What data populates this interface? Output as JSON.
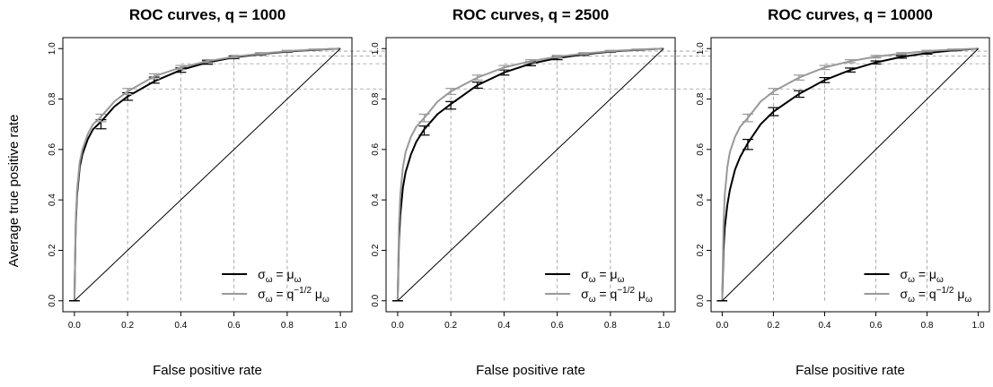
{
  "figure": {
    "ylabel": "Average true positive rate"
  },
  "chart_data": [
    {
      "type": "line",
      "title": "ROC curves, q = 1000",
      "xlabel": "False positive rate",
      "ylabel": "Average true positive rate",
      "xlim": [
        0,
        1
      ],
      "ylim": [
        0,
        1
      ],
      "xticks": [
        "0.0",
        "0.2",
        "0.4",
        "0.6",
        "0.8",
        "1.0"
      ],
      "yticks": [
        "0.0",
        "0.2",
        "0.4",
        "0.6",
        "0.8",
        "1.0"
      ],
      "legend_position": "bottom-right",
      "legend": [
        {
          "text_main": "σ",
          "text_sub": "ω",
          "text_eq": " = μ",
          "text_sub2": "ω",
          "color": "#000000"
        },
        {
          "text_main": "σ",
          "text_sub": "ω",
          "text_eq": " = q",
          "text_sup": "−1/2",
          "text_tail": " μ",
          "text_sub2": "ω",
          "color": "#999999"
        }
      ],
      "series": [
        {
          "color": "#000000",
          "x": [
            0,
            0.005,
            0.01,
            0.02,
            0.03,
            0.05,
            0.07,
            0.1,
            0.15,
            0.2,
            0.3,
            0.4,
            0.5,
            0.6,
            0.7,
            0.8,
            0.9,
            1.0
          ],
          "y": [
            0,
            0.3,
            0.42,
            0.53,
            0.58,
            0.64,
            0.68,
            0.71,
            0.77,
            0.81,
            0.87,
            0.915,
            0.945,
            0.965,
            0.978,
            0.988,
            0.995,
            1.0
          ],
          "error_bars": [
            {
              "x": 0.1,
              "y": 0.7,
              "err": 0.018
            },
            {
              "x": 0.2,
              "y": 0.81,
              "err": 0.015
            },
            {
              "x": 0.3,
              "y": 0.875,
              "err": 0.012
            },
            {
              "x": 0.4,
              "y": 0.915,
              "err": 0.009
            },
            {
              "x": 0.5,
              "y": 0.945,
              "err": 0.007
            },
            {
              "x": 0.6,
              "y": 0.965,
              "err": 0.005
            },
            {
              "x": 0.7,
              "y": 0.978,
              "err": 0.004
            },
            {
              "x": 0.8,
              "y": 0.988,
              "err": 0.003
            },
            {
              "x": 0.9,
              "y": 0.995,
              "err": 0.002
            }
          ]
        },
        {
          "color": "#999999",
          "x": [
            0,
            0.005,
            0.01,
            0.02,
            0.03,
            0.05,
            0.07,
            0.1,
            0.15,
            0.2,
            0.3,
            0.4,
            0.5,
            0.6,
            0.7,
            0.8,
            0.9,
            1.0
          ],
          "y": [
            0,
            0.32,
            0.44,
            0.55,
            0.6,
            0.66,
            0.7,
            0.73,
            0.79,
            0.83,
            0.89,
            0.925,
            0.95,
            0.968,
            0.98,
            0.99,
            0.996,
            1.0
          ],
          "error_bars": [
            {
              "x": 0.1,
              "y": 0.725,
              "err": 0.015
            },
            {
              "x": 0.2,
              "y": 0.83,
              "err": 0.012
            },
            {
              "x": 0.3,
              "y": 0.89,
              "err": 0.01
            },
            {
              "x": 0.4,
              "y": 0.925,
              "err": 0.008
            },
            {
              "x": 0.5,
              "y": 0.95,
              "err": 0.006
            },
            {
              "x": 0.6,
              "y": 0.968,
              "err": 0.005
            },
            {
              "x": 0.7,
              "y": 0.98,
              "err": 0.004
            },
            {
              "x": 0.8,
              "y": 0.99,
              "err": 0.003
            },
            {
              "x": 0.9,
              "y": 0.996,
              "err": 0.002
            }
          ]
        },
        {
          "color": "#000000",
          "x": [
            0,
            1
          ],
          "y": [
            0,
            1
          ]
        }
      ],
      "dashed_guides": [
        {
          "x": 0.2,
          "y": 0.84
        },
        {
          "x": 0.4,
          "y": 0.94
        },
        {
          "x": 0.6,
          "y": 0.97
        },
        {
          "x": 0.8,
          "y": 0.99
        }
      ]
    },
    {
      "type": "line",
      "title": "ROC curves, q = 2500",
      "xlabel": "False positive rate",
      "xlim": [
        0,
        1
      ],
      "ylim": [
        0,
        1
      ],
      "xticks": [
        "0.0",
        "0.2",
        "0.4",
        "0.6",
        "0.8",
        "1.0"
      ],
      "yticks": [
        "0.0",
        "0.2",
        "0.4",
        "0.6",
        "0.8",
        "1.0"
      ],
      "legend_position": "bottom-right",
      "legend": [
        {
          "text_main": "σ",
          "text_sub": "ω",
          "text_eq": " = μ",
          "text_sub2": "ω",
          "color": "#000000"
        },
        {
          "text_main": "σ",
          "text_sub": "ω",
          "text_eq": " = q",
          "text_sup": "−1/2",
          "text_tail": " μ",
          "text_sub2": "ω",
          "color": "#999999"
        }
      ],
      "series": [
        {
          "color": "#000000",
          "x": [
            0,
            0.005,
            0.01,
            0.02,
            0.03,
            0.05,
            0.07,
            0.1,
            0.15,
            0.2,
            0.3,
            0.4,
            0.5,
            0.6,
            0.7,
            0.8,
            0.9,
            1.0
          ],
          "y": [
            0,
            0.24,
            0.34,
            0.45,
            0.51,
            0.58,
            0.63,
            0.68,
            0.74,
            0.78,
            0.855,
            0.905,
            0.94,
            0.962,
            0.977,
            0.988,
            0.995,
            1.0
          ],
          "error_bars": [
            {
              "x": 0.1,
              "y": 0.675,
              "err": 0.018
            },
            {
              "x": 0.2,
              "y": 0.775,
              "err": 0.015
            },
            {
              "x": 0.3,
              "y": 0.855,
              "err": 0.012
            },
            {
              "x": 0.4,
              "y": 0.905,
              "err": 0.01
            },
            {
              "x": 0.5,
              "y": 0.94,
              "err": 0.008
            },
            {
              "x": 0.6,
              "y": 0.962,
              "err": 0.006
            },
            {
              "x": 0.7,
              "y": 0.977,
              "err": 0.004
            },
            {
              "x": 0.8,
              "y": 0.988,
              "err": 0.003
            },
            {
              "x": 0.9,
              "y": 0.995,
              "err": 0.002
            }
          ]
        },
        {
          "color": "#999999",
          "x": [
            0,
            0.005,
            0.01,
            0.02,
            0.03,
            0.05,
            0.07,
            0.1,
            0.15,
            0.2,
            0.3,
            0.4,
            0.5,
            0.6,
            0.7,
            0.8,
            0.9,
            1.0
          ],
          "y": [
            0,
            0.3,
            0.42,
            0.53,
            0.59,
            0.65,
            0.69,
            0.725,
            0.79,
            0.83,
            0.885,
            0.925,
            0.95,
            0.968,
            0.98,
            0.99,
            0.996,
            1.0
          ],
          "error_bars": [
            {
              "x": 0.1,
              "y": 0.725,
              "err": 0.015
            },
            {
              "x": 0.2,
              "y": 0.83,
              "err": 0.012
            },
            {
              "x": 0.3,
              "y": 0.885,
              "err": 0.01
            },
            {
              "x": 0.4,
              "y": 0.925,
              "err": 0.008
            },
            {
              "x": 0.5,
              "y": 0.95,
              "err": 0.006
            },
            {
              "x": 0.6,
              "y": 0.968,
              "err": 0.005
            },
            {
              "x": 0.7,
              "y": 0.98,
              "err": 0.004
            },
            {
              "x": 0.8,
              "y": 0.99,
              "err": 0.003
            },
            {
              "x": 0.9,
              "y": 0.996,
              "err": 0.002
            }
          ]
        },
        {
          "color": "#000000",
          "x": [
            0,
            1
          ],
          "y": [
            0,
            1
          ]
        }
      ],
      "dashed_guides": [
        {
          "x": 0.2,
          "y": 0.84
        },
        {
          "x": 0.4,
          "y": 0.94
        },
        {
          "x": 0.6,
          "y": 0.97
        },
        {
          "x": 0.8,
          "y": 0.99
        }
      ]
    },
    {
      "type": "line",
      "title": "ROC curves, q = 10000",
      "xlabel": "False positive rate",
      "xlim": [
        0,
        1
      ],
      "ylim": [
        0,
        1
      ],
      "xticks": [
        "0.0",
        "0.2",
        "0.4",
        "0.6",
        "0.8",
        "1.0"
      ],
      "yticks": [
        "0.0",
        "0.2",
        "0.4",
        "0.6",
        "0.8",
        "1.0"
      ],
      "legend_position": "bottom-right",
      "legend": [
        {
          "text_main": "σ",
          "text_sub": "ω",
          "text_eq": " = μ",
          "text_sub2": "ω",
          "color": "#000000"
        },
        {
          "text_main": "σ",
          "text_sub": "ω",
          "text_eq": " = q",
          "text_sup": "−1/2",
          "text_tail": " μ",
          "text_sub2": "ω",
          "color": "#999999"
        }
      ],
      "series": [
        {
          "color": "#000000",
          "x": [
            0,
            0.005,
            0.01,
            0.02,
            0.03,
            0.05,
            0.07,
            0.1,
            0.15,
            0.2,
            0.3,
            0.4,
            0.5,
            0.6,
            0.7,
            0.8,
            0.9,
            1.0
          ],
          "y": [
            0,
            0.2,
            0.29,
            0.38,
            0.44,
            0.52,
            0.57,
            0.625,
            0.7,
            0.75,
            0.82,
            0.875,
            0.915,
            0.945,
            0.967,
            0.982,
            0.993,
            1.0
          ],
          "error_bars": [
            {
              "x": 0.1,
              "y": 0.62,
              "err": 0.02
            },
            {
              "x": 0.2,
              "y": 0.75,
              "err": 0.016
            },
            {
              "x": 0.3,
              "y": 0.82,
              "err": 0.013
            },
            {
              "x": 0.4,
              "y": 0.875,
              "err": 0.01
            },
            {
              "x": 0.5,
              "y": 0.915,
              "err": 0.008
            },
            {
              "x": 0.6,
              "y": 0.945,
              "err": 0.006
            },
            {
              "x": 0.7,
              "y": 0.967,
              "err": 0.005
            },
            {
              "x": 0.8,
              "y": 0.982,
              "err": 0.004
            },
            {
              "x": 0.9,
              "y": 0.993,
              "err": 0.002
            }
          ]
        },
        {
          "color": "#999999",
          "x": [
            0,
            0.005,
            0.01,
            0.02,
            0.03,
            0.05,
            0.07,
            0.1,
            0.15,
            0.2,
            0.3,
            0.4,
            0.5,
            0.6,
            0.7,
            0.8,
            0.9,
            1.0
          ],
          "y": [
            0,
            0.3,
            0.42,
            0.53,
            0.59,
            0.65,
            0.69,
            0.725,
            0.79,
            0.83,
            0.885,
            0.925,
            0.95,
            0.968,
            0.98,
            0.99,
            0.996,
            1.0
          ],
          "error_bars": [
            {
              "x": 0.1,
              "y": 0.725,
              "err": 0.015
            },
            {
              "x": 0.2,
              "y": 0.83,
              "err": 0.012
            },
            {
              "x": 0.3,
              "y": 0.885,
              "err": 0.01
            },
            {
              "x": 0.4,
              "y": 0.925,
              "err": 0.008
            },
            {
              "x": 0.5,
              "y": 0.95,
              "err": 0.006
            },
            {
              "x": 0.6,
              "y": 0.968,
              "err": 0.005
            },
            {
              "x": 0.7,
              "y": 0.98,
              "err": 0.004
            },
            {
              "x": 0.8,
              "y": 0.99,
              "err": 0.003
            },
            {
              "x": 0.9,
              "y": 0.996,
              "err": 0.002
            }
          ]
        },
        {
          "color": "#000000",
          "x": [
            0,
            1
          ],
          "y": [
            0,
            1
          ]
        }
      ],
      "dashed_guides": [
        {
          "x": 0.2,
          "y": 0.84
        },
        {
          "x": 0.4,
          "y": 0.94
        },
        {
          "x": 0.6,
          "y": 0.97
        },
        {
          "x": 0.8,
          "y": 0.99
        }
      ]
    }
  ]
}
